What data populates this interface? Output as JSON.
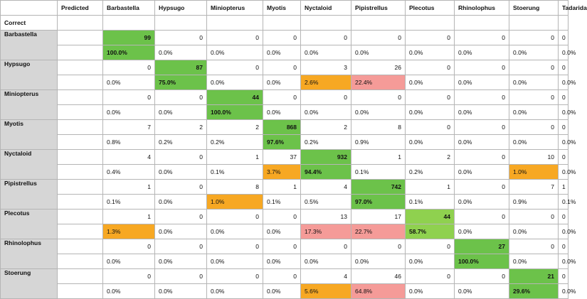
{
  "corner_label": "",
  "predicted_label": "Predicted",
  "correct_label": "Correct",
  "columns": [
    "Barbastella",
    "Hypsugo",
    "Miniopterus",
    "Myotis",
    "Nyctaloid",
    "Pipistrellus",
    "Plecotus",
    "Rhinolophus",
    "Stoerung",
    "Tadarida"
  ],
  "rows": [
    {
      "label": "Barbastella",
      "counts": [
        "99",
        "0",
        "0",
        "0",
        "0",
        "0",
        "0",
        "0",
        "0",
        "0"
      ],
      "percents": [
        "100.0%",
        "0.0%",
        "0.0%",
        "0.0%",
        "0.0%",
        "0.0%",
        "0.0%",
        "0.0%",
        "0.0%",
        "0.0%"
      ]
    },
    {
      "label": "Hypsugo",
      "counts": [
        "0",
        "87",
        "0",
        "0",
        "3",
        "26",
        "0",
        "0",
        "0",
        "0"
      ],
      "percents": [
        "0.0%",
        "75.0%",
        "0.0%",
        "0.0%",
        "2.6%",
        "22.4%",
        "0.0%",
        "0.0%",
        "0.0%",
        "0.0%"
      ]
    },
    {
      "label": "Miniopterus",
      "counts": [
        "0",
        "0",
        "44",
        "0",
        "0",
        "0",
        "0",
        "0",
        "0",
        "0"
      ],
      "percents": [
        "0.0%",
        "0.0%",
        "100.0%",
        "0.0%",
        "0.0%",
        "0.0%",
        "0.0%",
        "0.0%",
        "0.0%",
        "0.0%"
      ]
    },
    {
      "label": "Myotis",
      "counts": [
        "7",
        "2",
        "2",
        "868",
        "2",
        "8",
        "0",
        "0",
        "0",
        "0"
      ],
      "percents": [
        "0.8%",
        "0.2%",
        "0.2%",
        "97.6%",
        "0.2%",
        "0.9%",
        "0.0%",
        "0.0%",
        "0.0%",
        "0.0%"
      ]
    },
    {
      "label": "Nyctaloid",
      "counts": [
        "4",
        "0",
        "1",
        "37",
        "932",
        "1",
        "2",
        "0",
        "10",
        "0"
      ],
      "percents": [
        "0.4%",
        "0.0%",
        "0.1%",
        "3.7%",
        "94.4%",
        "0.1%",
        "0.2%",
        "0.0%",
        "1.0%",
        "0.0%"
      ]
    },
    {
      "label": "Pipistrellus",
      "counts": [
        "1",
        "0",
        "8",
        "1",
        "4",
        "742",
        "1",
        "0",
        "7",
        "1"
      ],
      "percents": [
        "0.1%",
        "0.0%",
        "1.0%",
        "0.1%",
        "0.5%",
        "97.0%",
        "0.1%",
        "0.0%",
        "0.9%",
        "0.1%"
      ]
    },
    {
      "label": "Plecotus",
      "counts": [
        "1",
        "0",
        "0",
        "0",
        "13",
        "17",
        "44",
        "0",
        "0",
        "0"
      ],
      "percents": [
        "1.3%",
        "0.0%",
        "0.0%",
        "0.0%",
        "17.3%",
        "22.7%",
        "58.7%",
        "0.0%",
        "0.0%",
        "0.0%"
      ]
    },
    {
      "label": "Rhinolophus",
      "counts": [
        "0",
        "0",
        "0",
        "0",
        "0",
        "0",
        "0",
        "27",
        "0",
        "0"
      ],
      "percents": [
        "0.0%",
        "0.0%",
        "0.0%",
        "0.0%",
        "0.0%",
        "0.0%",
        "0.0%",
        "100.0%",
        "0.0%",
        "0.0%"
      ]
    },
    {
      "label": "Stoerung",
      "counts": [
        "0",
        "0",
        "0",
        "0",
        "4",
        "46",
        "0",
        "0",
        "21",
        "0"
      ],
      "percents": [
        "0.0%",
        "0.0%",
        "0.0%",
        "0.0%",
        "5.6%",
        "64.8%",
        "0.0%",
        "0.0%",
        "29.6%",
        "0.0%"
      ]
    }
  ],
  "highlights": {
    "colors": {
      "strong_green": "#6cc24a",
      "light_green": "#8fd14f",
      "orange": "#f7a823",
      "pink": "#f59b98"
    },
    "cells": [
      {
        "row": 0,
        "col": 0,
        "color": "strong_green",
        "diagonal": true
      },
      {
        "row": 1,
        "col": 1,
        "color": "strong_green",
        "diagonal": true
      },
      {
        "row": 1,
        "col": 4,
        "color": "orange",
        "which": "percent"
      },
      {
        "row": 1,
        "col": 5,
        "color": "pink",
        "which": "percent"
      },
      {
        "row": 2,
        "col": 2,
        "color": "strong_green",
        "diagonal": true
      },
      {
        "row": 3,
        "col": 3,
        "color": "strong_green",
        "diagonal": true
      },
      {
        "row": 4,
        "col": 3,
        "color": "orange",
        "which": "percent"
      },
      {
        "row": 4,
        "col": 4,
        "color": "strong_green",
        "diagonal": true
      },
      {
        "row": 4,
        "col": 8,
        "color": "orange",
        "which": "percent"
      },
      {
        "row": 5,
        "col": 2,
        "color": "orange",
        "which": "percent"
      },
      {
        "row": 5,
        "col": 5,
        "color": "strong_green",
        "diagonal": true
      },
      {
        "row": 6,
        "col": 0,
        "color": "orange",
        "which": "percent"
      },
      {
        "row": 6,
        "col": 4,
        "color": "pink",
        "which": "percent"
      },
      {
        "row": 6,
        "col": 5,
        "color": "pink",
        "which": "percent"
      },
      {
        "row": 6,
        "col": 6,
        "color": "light_green",
        "diagonal": true
      },
      {
        "row": 7,
        "col": 7,
        "color": "strong_green",
        "diagonal": true
      },
      {
        "row": 8,
        "col": 4,
        "color": "orange",
        "which": "percent"
      },
      {
        "row": 8,
        "col": 5,
        "color": "pink",
        "which": "percent"
      },
      {
        "row": 8,
        "col": 8,
        "color": "strong_green",
        "diagonal": true
      }
    ]
  }
}
